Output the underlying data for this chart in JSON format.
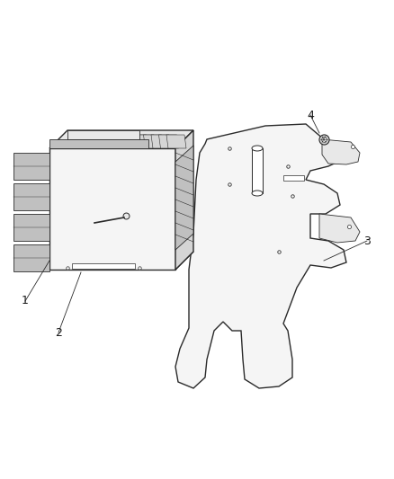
{
  "background_color": "#ffffff",
  "line_color": "#2a2a2a",
  "label_color": "#1a1a1a",
  "figsize": [
    4.39,
    5.33
  ],
  "dpi": 100,
  "fill_light": "#f5f5f5",
  "fill_mid": "#e8e8e8",
  "fill_dark": "#d5d5d5",
  "fill_connector": "#c0c0c0"
}
